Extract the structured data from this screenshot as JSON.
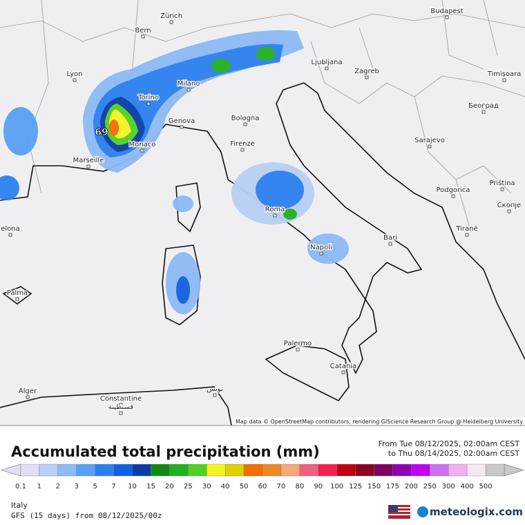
{
  "map": {
    "cities": [
      "Zürich",
      "Bern",
      "Budapest",
      "Lyon",
      "Milano",
      "Torino",
      "Ljubljana",
      "Zagreb",
      "Timișoara",
      "Београд",
      "Genova",
      "Bologna",
      "Monaco",
      "Marseille",
      "Firenze",
      "Sarajevo",
      "Podgorica",
      "Priština",
      "Скопје",
      "Roma",
      "Tiranë",
      "Bari",
      "Napoli",
      "Palma",
      "Palermo",
      "Catania",
      "Alger",
      "Constantine",
      "قسنطينة",
      "تونس",
      "elona"
    ],
    "max_label": "69",
    "attribution": "Map data © OpenStreetMap contributors, rendering GIScience Research Group @ Heidelberg University"
  },
  "legend": {
    "title": "Accumulated total precipitation (mm)",
    "from": "From Tue 08/12/2025, 02:00am CEST",
    "to": "to Thu 08/14/2025, 02:00am CEST",
    "values": [
      0.1,
      1,
      2,
      3,
      5,
      7,
      10,
      15,
      20,
      25,
      30,
      40,
      50,
      60,
      70,
      80,
      90,
      100,
      125,
      150,
      175,
      200,
      250,
      300,
      400,
      500
    ],
    "colors": [
      "#e0e0f5",
      "#b8d0f5",
      "#8cbaf5",
      "#5aa0f5",
      "#2a80f0",
      "#1060e0",
      "#0a3ca8",
      "#108a10",
      "#20b020",
      "#50d020",
      "#f5f520",
      "#e0d000",
      "#f07000",
      "#f08828",
      "#f5a878",
      "#f06080",
      "#f02050",
      "#c00010",
      "#900020",
      "#800060",
      "#9000b0",
      "#c000f0",
      "#d070f0",
      "#f0b0f0",
      "#f5e8f5",
      "#c8c8c8"
    ]
  },
  "footer": {
    "region": "Italy",
    "model": "GFS (15 days) from 08/12/2025/00z",
    "brand": "meteologix.com"
  }
}
